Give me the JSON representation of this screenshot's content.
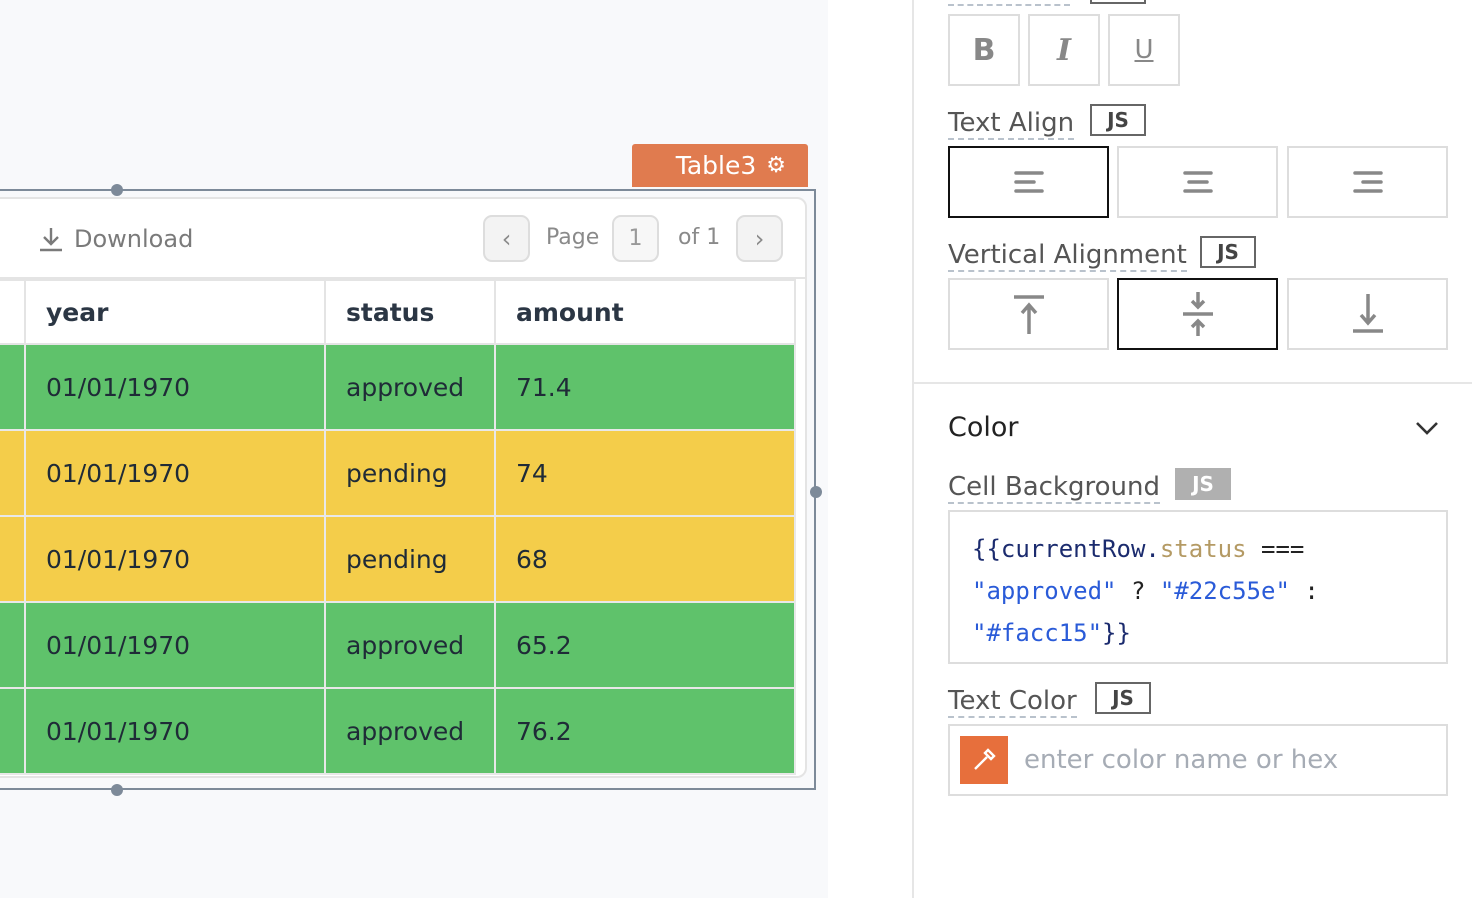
{
  "widget": {
    "name": "Table3",
    "icon": "gear-icon"
  },
  "toolbar": {
    "download": "Download",
    "page_label": "Page",
    "page_value": "1",
    "of_label": "of 1"
  },
  "table": {
    "columns": [
      "year",
      "status",
      "amount"
    ],
    "rows": [
      {
        "year": "01/01/1970",
        "status": "approved",
        "amount": "71.4",
        "bg": "#5fc26b"
      },
      {
        "year": "01/01/1970",
        "status": "pending",
        "amount": "74",
        "bg": "#f4cd4a"
      },
      {
        "year": "01/01/1970",
        "status": "pending",
        "amount": "68",
        "bg": "#f4cd4a"
      },
      {
        "year": "01/01/1970",
        "status": "approved",
        "amount": "65.2",
        "bg": "#5fc26b"
      },
      {
        "year": "01/01/1970",
        "status": "approved",
        "amount": "76.2",
        "bg": "#5fc26b"
      }
    ]
  },
  "panel": {
    "emphasis": {
      "buttons": [
        "B",
        "I",
        "U"
      ]
    },
    "text_align": {
      "label": "Text Align",
      "js": "JS",
      "selected": "left"
    },
    "vertical_alignment": {
      "label": "Vertical Alignment",
      "js": "JS",
      "selected": "center"
    },
    "color_section": {
      "title": "Color"
    },
    "cell_background": {
      "label": "Cell Background",
      "js": "JS",
      "code": {
        "l1a": "{{currentRow.",
        "l1b": "status",
        "l1c": " ===",
        "l2a": "\"approved\"",
        "l2b": " ? ",
        "l2c": "\"#22c55e\"",
        "l2d": " :",
        "l3a": "\"#facc15\"",
        "l3b": "}}"
      }
    },
    "text_color": {
      "label": "Text Color",
      "js": "JS",
      "placeholder": "enter color name or hex"
    }
  },
  "colors": {
    "accent": "#e07b4f",
    "approved": "#5fc26b",
    "pending": "#f4cd4a"
  }
}
